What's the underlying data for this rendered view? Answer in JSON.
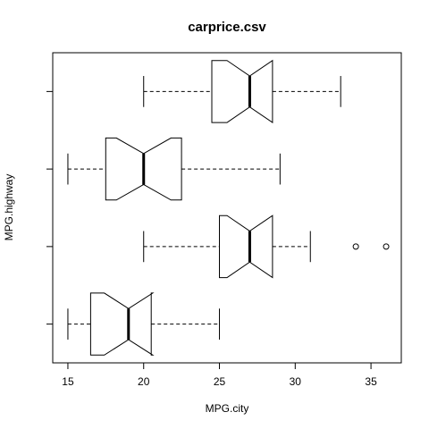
{
  "chart_data": {
    "type": "boxplot",
    "orientation": "horizontal",
    "notched": true,
    "title": "carprice.csv",
    "xlabel": "MPG.city",
    "ylabel": "MPG.highway",
    "xlim": [
      14,
      37
    ],
    "x_ticks": [
      15,
      20,
      25,
      30,
      35
    ],
    "groups": [
      {
        "whisker_low": 15,
        "q1": 16.5,
        "notch_low": 17.4,
        "median": 19,
        "notch_high": 20.6,
        "q3": 20.5,
        "whisker_high": 25,
        "outliers": []
      },
      {
        "whisker_low": 20,
        "q1": 25,
        "notch_low": 25.5,
        "median": 27,
        "notch_high": 28.5,
        "q3": 28.5,
        "whisker_high": 31,
        "outliers": [
          34,
          36
        ]
      },
      {
        "whisker_low": 15,
        "q1": 17.5,
        "notch_low": 18.2,
        "median": 20,
        "notch_high": 21.8,
        "q3": 22.5,
        "whisker_high": 29,
        "outliers": []
      },
      {
        "whisker_low": 20,
        "q1": 24.5,
        "notch_low": 25.5,
        "median": 27,
        "notch_high": 28.5,
        "q3": 28.5,
        "whisker_high": 33,
        "outliers": []
      }
    ]
  }
}
